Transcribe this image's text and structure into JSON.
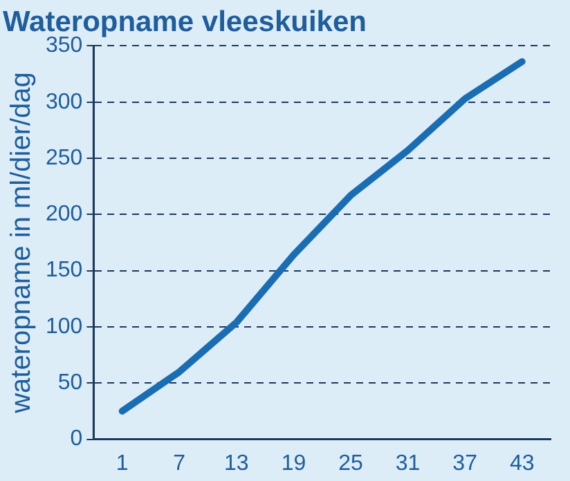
{
  "chart_data": {
    "type": "line",
    "title": "Wateropname vleeskuiken",
    "ylabel": "wateropname in ml/dier/dag",
    "categories": [
      "1",
      "7",
      "13",
      "19",
      "25",
      "31",
      "37",
      "43"
    ],
    "series": [
      {
        "color": "#1a6db3",
        "values": [
          25,
          60,
          104,
          164,
          217,
          257,
          303,
          336
        ]
      }
    ],
    "ylim": [
      0,
      350
    ],
    "yticks": [
      0,
      50,
      100,
      150,
      200,
      250,
      300,
      350
    ],
    "grid": "y",
    "legend": false,
    "marker": "none",
    "line_style": "solid"
  }
}
